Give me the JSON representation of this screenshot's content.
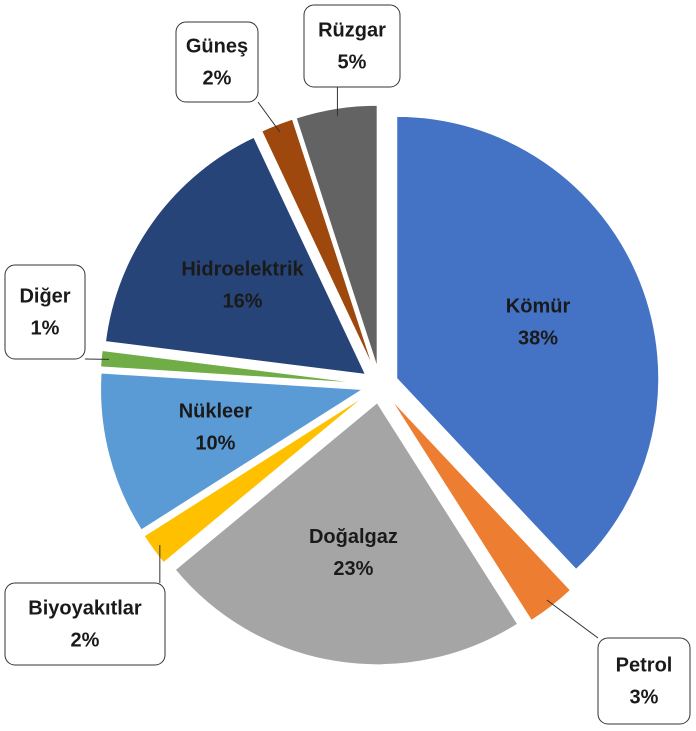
{
  "chart_data": {
    "type": "pie",
    "categories": [
      "Kömür",
      "Petrol",
      "Doğalgaz",
      "Biyoyakıtlar",
      "Nükleer",
      "Diğer",
      "Hidroelektrik",
      "Güneş",
      "Rüzgar"
    ],
    "values": [
      38,
      3,
      23,
      2,
      10,
      1,
      16,
      2,
      5
    ],
    "value_labels": [
      "38%",
      "3%",
      "23%",
      "2%",
      "10%",
      "1%",
      "16%",
      "2%",
      "5%"
    ],
    "colors": [
      "#4472c4",
      "#ed7d31",
      "#a5a5a5",
      "#ffc000",
      "#5b9bd5",
      "#70ad47",
      "#264478",
      "#9e480e",
      "#636363"
    ]
  }
}
